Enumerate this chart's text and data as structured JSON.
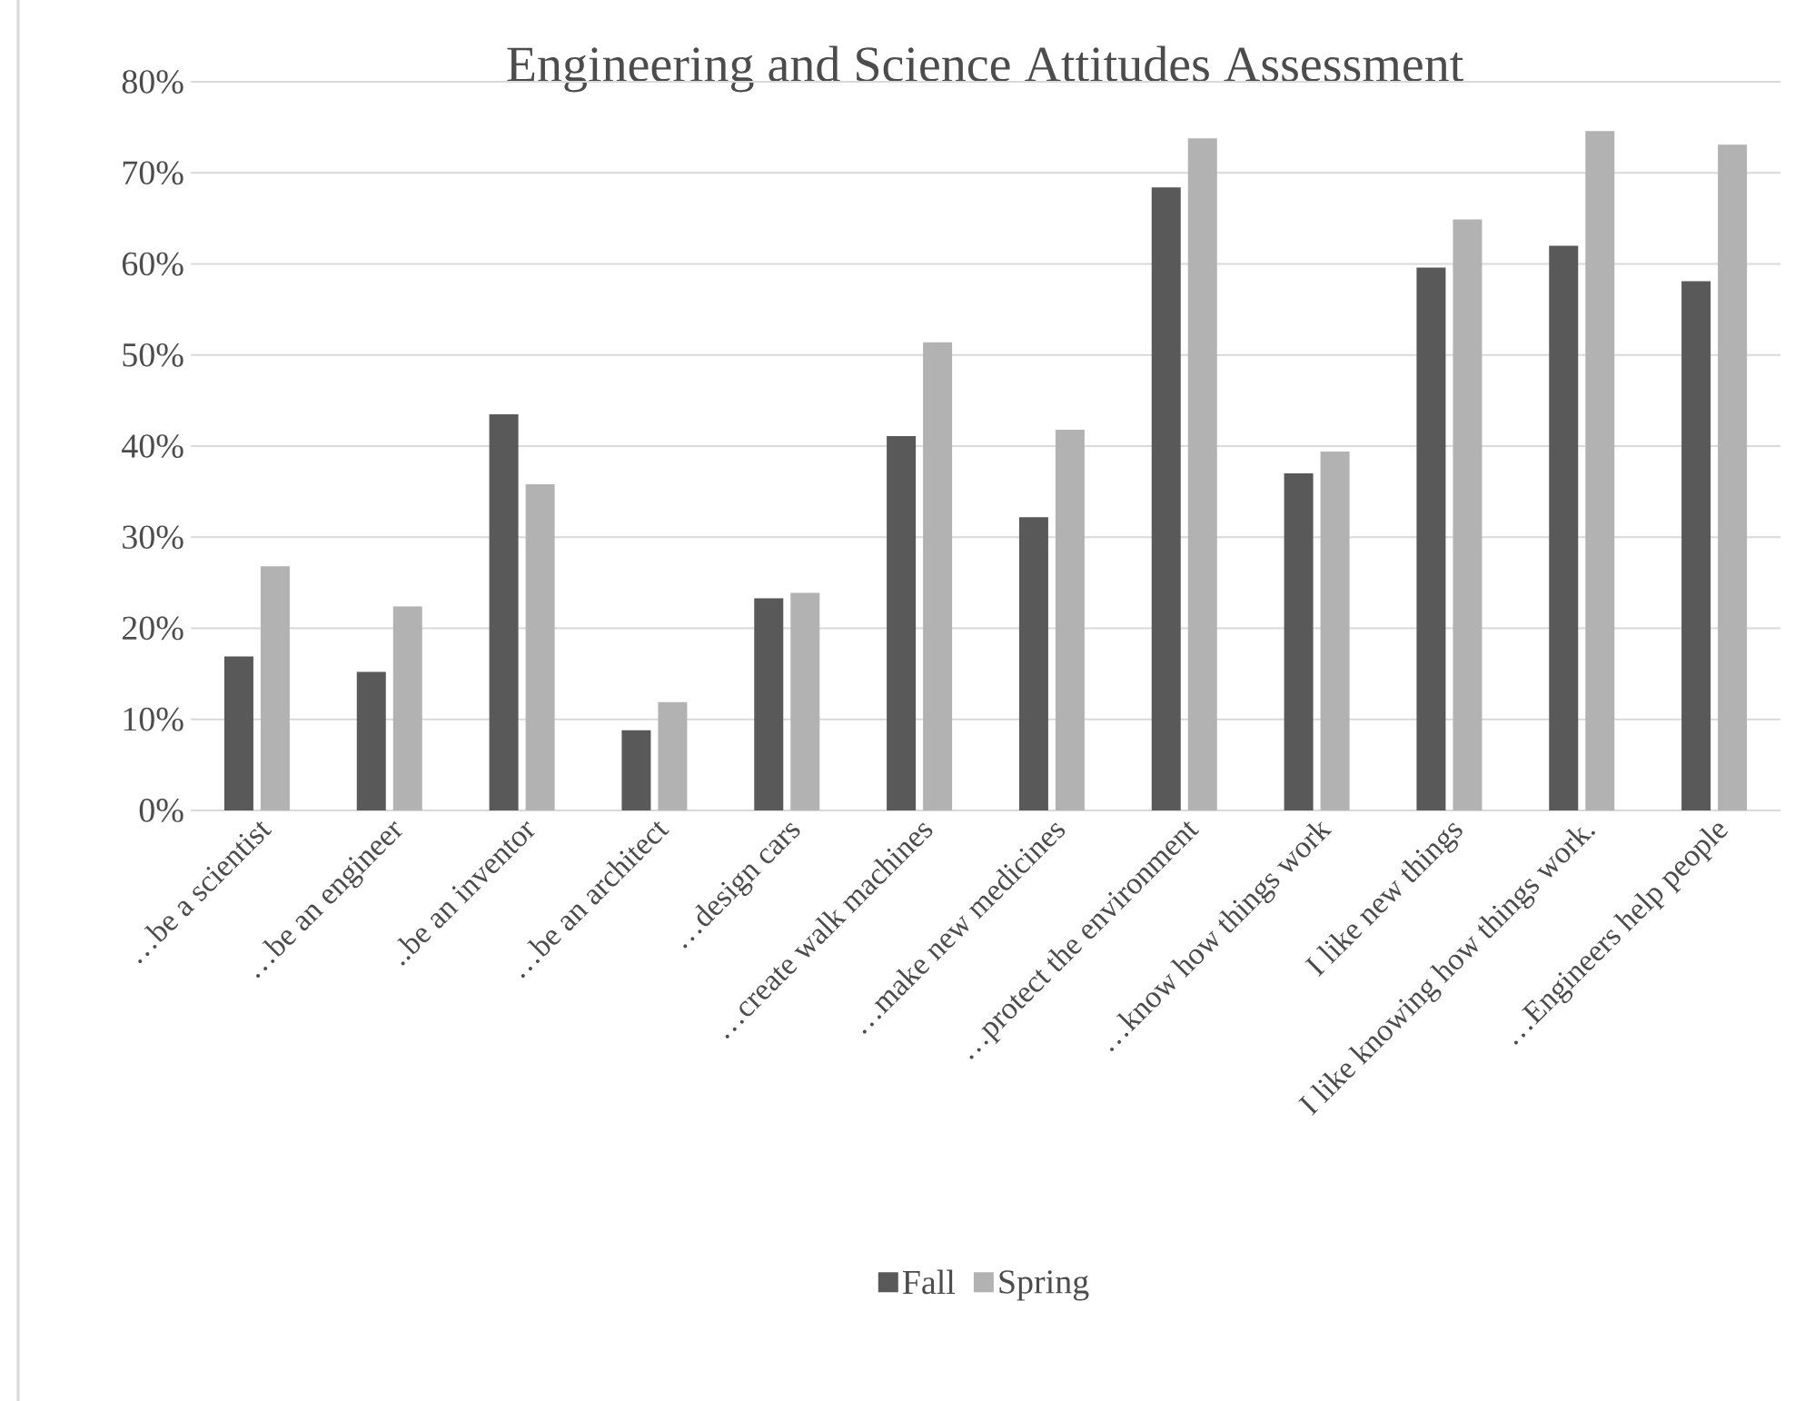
{
  "chart_data": {
    "type": "bar",
    "title": "Engineering and Science Attitudes Assessment",
    "categories": [
      "…be a scientist",
      "…be an engineer",
      "..be an inventor",
      "…be an architect",
      "…design cars",
      "…create walk machines",
      "…make new medicines",
      "…protect the environment",
      "…know how things work",
      "I like new things",
      "I like knowing how things work.",
      "…Engineers help people"
    ],
    "series": [
      {
        "name": "Fall",
        "color": "#595959",
        "values": [
          16.9,
          15.2,
          43.5,
          8.8,
          23.3,
          41.1,
          32.2,
          68.4,
          37.0,
          59.6,
          62.0,
          58.1
        ]
      },
      {
        "name": "Spring",
        "color": "#b2b2b2",
        "values": [
          26.8,
          22.4,
          35.8,
          11.9,
          23.9,
          51.4,
          41.8,
          73.8,
          39.4,
          64.9,
          74.6,
          73.1
        ]
      }
    ],
    "ylim": [
      0,
      80
    ],
    "yticks": [
      {
        "value": 0,
        "label": "0%"
      },
      {
        "value": 10,
        "label": "10%"
      },
      {
        "value": 20,
        "label": "20%"
      },
      {
        "value": 30,
        "label": "30%"
      },
      {
        "value": 40,
        "label": "40%"
      },
      {
        "value": 50,
        "label": "50%"
      },
      {
        "value": 60,
        "label": "60%"
      },
      {
        "value": 70,
        "label": "70%"
      },
      {
        "value": 80,
        "label": "80%"
      }
    ],
    "grid": "y",
    "legend": "bottom"
  }
}
